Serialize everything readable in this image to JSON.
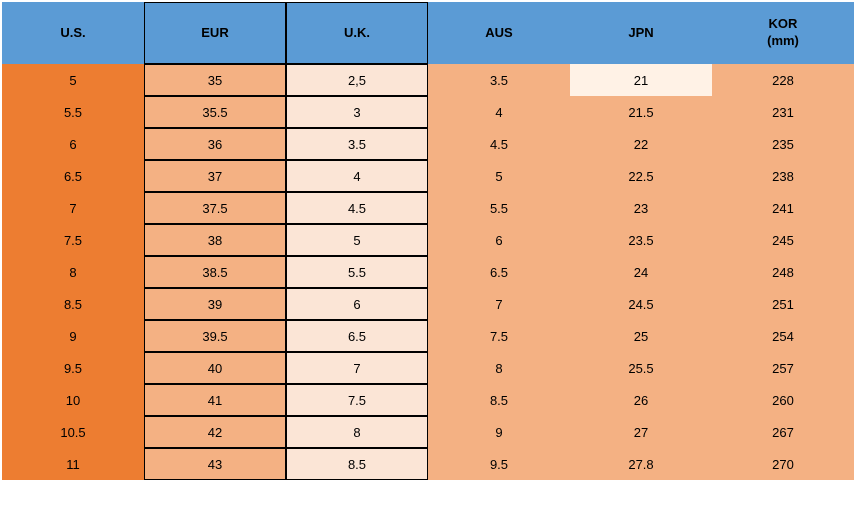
{
  "colors": {
    "header_bg": "#5b9bd5",
    "dark_orange": "#ed7d31",
    "mid_orange": "#f4b183",
    "light_orange": "#fbe5d6",
    "lightest_orange": "#fff2e6"
  },
  "columns": [
    {
      "label": "U.S.",
      "bordered": false
    },
    {
      "label": "EUR",
      "bordered": true
    },
    {
      "label": "U.K.",
      "bordered": true
    },
    {
      "label": "AUS",
      "bordered": false
    },
    {
      "label": "JPN",
      "bordered": false
    },
    {
      "label": "KOR\n(mm)",
      "bordered": false
    }
  ],
  "rows": [
    {
      "values": [
        "5",
        "35",
        "2,5",
        "3.5",
        "21",
        "228"
      ],
      "fills": [
        "dark_orange",
        "mid_orange",
        "light_orange",
        "mid_orange",
        "lightest_orange",
        "mid_orange"
      ],
      "borders": [
        false,
        true,
        true,
        false,
        false,
        false
      ]
    },
    {
      "values": [
        "5.5",
        "35.5",
        "3",
        "4",
        "21.5",
        "231"
      ],
      "fills": [
        "dark_orange",
        "mid_orange",
        "light_orange",
        "mid_orange",
        "mid_orange",
        "mid_orange"
      ],
      "borders": [
        false,
        true,
        true,
        false,
        false,
        false
      ]
    },
    {
      "values": [
        "6",
        "36",
        "3.5",
        "4.5",
        "22",
        "235"
      ],
      "fills": [
        "dark_orange",
        "mid_orange",
        "light_orange",
        "mid_orange",
        "mid_orange",
        "mid_orange"
      ],
      "borders": [
        false,
        true,
        true,
        false,
        false,
        false
      ]
    },
    {
      "values": [
        "6.5",
        "37",
        "4",
        "5",
        "22.5",
        "238"
      ],
      "fills": [
        "dark_orange",
        "mid_orange",
        "light_orange",
        "mid_orange",
        "mid_orange",
        "mid_orange"
      ],
      "borders": [
        false,
        true,
        true,
        false,
        false,
        false
      ]
    },
    {
      "values": [
        "7",
        "37.5",
        "4.5",
        "5.5",
        "23",
        "241"
      ],
      "fills": [
        "dark_orange",
        "mid_orange",
        "light_orange",
        "mid_orange",
        "mid_orange",
        "mid_orange"
      ],
      "borders": [
        false,
        true,
        true,
        false,
        false,
        false
      ]
    },
    {
      "values": [
        "7.5",
        "38",
        "5",
        "6",
        "23.5",
        "245"
      ],
      "fills": [
        "dark_orange",
        "mid_orange",
        "light_orange",
        "mid_orange",
        "mid_orange",
        "mid_orange"
      ],
      "borders": [
        false,
        true,
        true,
        false,
        false,
        false
      ]
    },
    {
      "values": [
        "8",
        "38.5",
        "5.5",
        "6.5",
        "24",
        "248"
      ],
      "fills": [
        "dark_orange",
        "mid_orange",
        "light_orange",
        "mid_orange",
        "mid_orange",
        "mid_orange"
      ],
      "borders": [
        false,
        true,
        true,
        false,
        false,
        false
      ]
    },
    {
      "values": [
        "8.5",
        "39",
        "6",
        "7",
        "24.5",
        "251"
      ],
      "fills": [
        "dark_orange",
        "mid_orange",
        "light_orange",
        "mid_orange",
        "mid_orange",
        "mid_orange"
      ],
      "borders": [
        false,
        true,
        true,
        false,
        false,
        false
      ]
    },
    {
      "values": [
        "9",
        "39.5",
        "6.5",
        "7.5",
        "25",
        "254"
      ],
      "fills": [
        "dark_orange",
        "mid_orange",
        "light_orange",
        "mid_orange",
        "mid_orange",
        "mid_orange"
      ],
      "borders": [
        false,
        true,
        true,
        false,
        false,
        false
      ]
    },
    {
      "values": [
        "9.5",
        "40",
        "7",
        "8",
        "25.5",
        "257"
      ],
      "fills": [
        "dark_orange",
        "mid_orange",
        "light_orange",
        "mid_orange",
        "mid_orange",
        "mid_orange"
      ],
      "borders": [
        false,
        true,
        true,
        false,
        false,
        false
      ]
    },
    {
      "values": [
        "10",
        "41",
        "7.5",
        "8.5",
        "26",
        "260"
      ],
      "fills": [
        "dark_orange",
        "mid_orange",
        "light_orange",
        "mid_orange",
        "mid_orange",
        "mid_orange"
      ],
      "borders": [
        false,
        true,
        true,
        false,
        false,
        false
      ]
    },
    {
      "values": [
        "10.5",
        "42",
        "8",
        "9",
        "27",
        "267"
      ],
      "fills": [
        "dark_orange",
        "mid_orange",
        "light_orange",
        "mid_orange",
        "mid_orange",
        "mid_orange"
      ],
      "borders": [
        false,
        true,
        true,
        false,
        false,
        false
      ]
    },
    {
      "values": [
        "11",
        "43",
        "8.5",
        "9.5",
        "27.8",
        "270"
      ],
      "fills": [
        "dark_orange",
        "mid_orange",
        "light_orange",
        "mid_orange",
        "mid_orange",
        "mid_orange"
      ],
      "borders": [
        false,
        true,
        true,
        false,
        false,
        false
      ]
    }
  ]
}
